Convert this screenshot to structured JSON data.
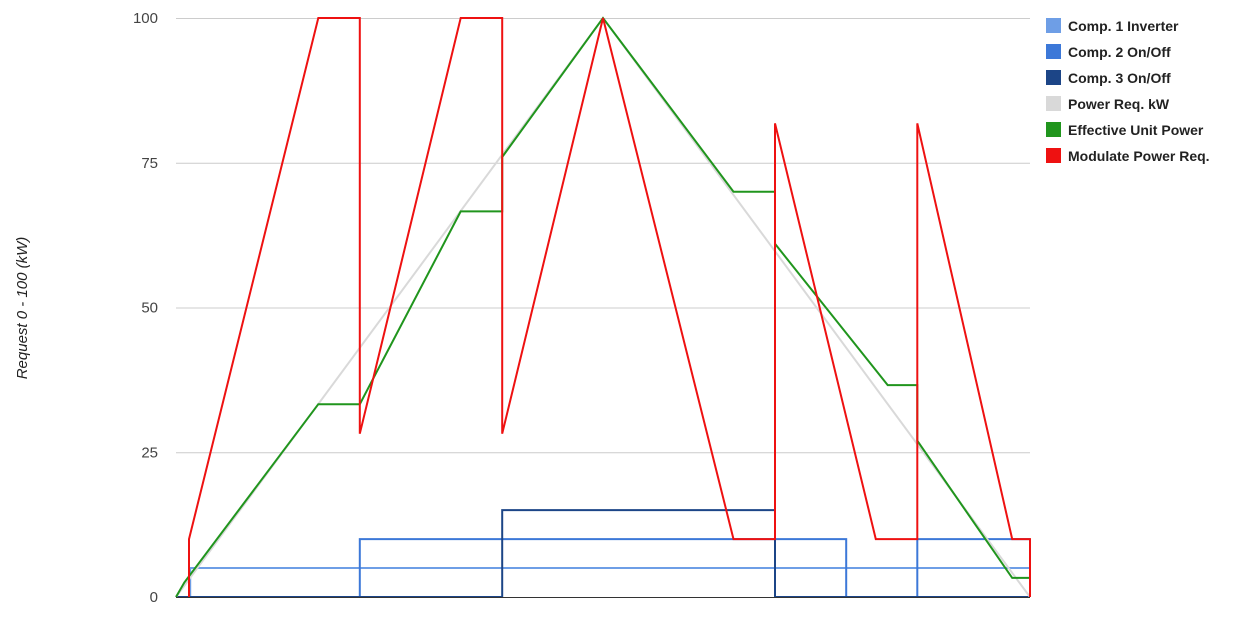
{
  "chart_data": {
    "type": "line",
    "xlabel": "",
    "ylabel": "Request 0 - 100 (kW)",
    "ylim": [
      0,
      100
    ],
    "yticks": [
      "0",
      "25",
      "50",
      "75",
      "100"
    ],
    "grid": true,
    "legend_position": "right",
    "series": [
      {
        "name": "Comp. 1 Inverter",
        "color": "#6e9ee6",
        "points": [
          [
            0,
            0
          ],
          [
            1.2,
            0
          ],
          [
            1.2,
            5
          ],
          [
            72,
            5
          ],
          [
            72,
            5
          ],
          [
            72,
            0
          ]
        ]
      },
      {
        "name": "Comp. 2 On/Off",
        "color": "#3c78d8",
        "points": [
          [
            0,
            0
          ],
          [
            15.5,
            0
          ],
          [
            15.5,
            10
          ],
          [
            56.5,
            10
          ],
          [
            56.5,
            0
          ],
          [
            62.5,
            0
          ],
          [
            62.5,
            10
          ],
          [
            72,
            10
          ]
        ]
      },
      {
        "name": "Comp. 3 On/Off",
        "color": "#1c4587",
        "points": [
          [
            0,
            0
          ],
          [
            27.5,
            0
          ],
          [
            27.5,
            15
          ],
          [
            50.5,
            15
          ],
          [
            50.5,
            0
          ],
          [
            72,
            0
          ]
        ]
      },
      {
        "name": "Power Req. kW",
        "color": "#d9d9d9",
        "points": [
          [
            0,
            0
          ],
          [
            36,
            100
          ],
          [
            72,
            0
          ]
        ]
      },
      {
        "name": "Effective Unit Power",
        "color": "#20951d",
        "points": [
          [
            0,
            0
          ],
          [
            0.7,
            2.5
          ],
          [
            12,
            33.3
          ],
          [
            15.5,
            33.3
          ],
          [
            24,
            66.6
          ],
          [
            27.5,
            66.6
          ],
          [
            27.5,
            76
          ],
          [
            36,
            100
          ],
          [
            47,
            70
          ],
          [
            50.5,
            70
          ],
          [
            50.5,
            61
          ],
          [
            60,
            36.6
          ],
          [
            62.5,
            36.6
          ],
          [
            62.5,
            27
          ],
          [
            70.5,
            3.3
          ],
          [
            72,
            3.3
          ],
          [
            72,
            0
          ]
        ]
      },
      {
        "name": "Modulate Power Req.",
        "color": "#ee1111",
        "points": [
          [
            1.1,
            0
          ],
          [
            1.1,
            10
          ],
          [
            12,
            100
          ],
          [
            15.5,
            100
          ],
          [
            15.5,
            28.2
          ],
          [
            24,
            100
          ],
          [
            27.5,
            100
          ],
          [
            27.5,
            28.2
          ],
          [
            36,
            100
          ],
          [
            47,
            10
          ],
          [
            50.5,
            10
          ],
          [
            50.5,
            81.8
          ],
          [
            59,
            10
          ],
          [
            62.5,
            10
          ],
          [
            62.5,
            81.8
          ],
          [
            70.5,
            10
          ],
          [
            72,
            10
          ],
          [
            72,
            0
          ]
        ]
      }
    ],
    "xlim": [
      0,
      72
    ]
  }
}
